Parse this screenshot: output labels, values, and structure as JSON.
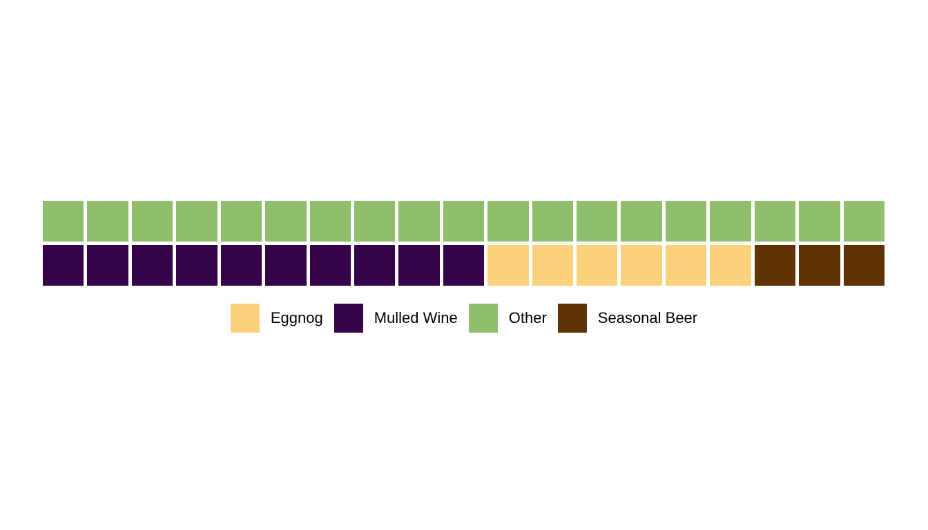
{
  "background_color": "#ffffff",
  "chart_data": {
    "type": "heatmap",
    "subtype": "waffle",
    "rows": 2,
    "columns": 19,
    "total_squares": 38,
    "series": [
      {
        "name": "Eggnog",
        "count": 6,
        "color": "#FDD17B"
      },
      {
        "name": "Mulled Wine",
        "count": 10,
        "color": "#340349"
      },
      {
        "name": "Other",
        "count": 19,
        "color": "#8FBE6C"
      },
      {
        "name": "Seasonal Beer",
        "count": 3,
        "color": "#5F3304"
      }
    ],
    "grid_rows": [
      [
        "Other",
        "Other",
        "Other",
        "Other",
        "Other",
        "Other",
        "Other",
        "Other",
        "Other",
        "Other",
        "Other",
        "Other",
        "Other",
        "Other",
        "Other",
        "Other",
        "Other",
        "Other",
        "Other"
      ],
      [
        "Mulled Wine",
        "Mulled Wine",
        "Mulled Wine",
        "Mulled Wine",
        "Mulled Wine",
        "Mulled Wine",
        "Mulled Wine",
        "Mulled Wine",
        "Mulled Wine",
        "Mulled Wine",
        "Eggnog",
        "Eggnog",
        "Eggnog",
        "Eggnog",
        "Eggnog",
        "Eggnog",
        "Seasonal Beer",
        "Seasonal Beer",
        "Seasonal Beer"
      ]
    ],
    "title": "",
    "legend": {
      "position": "bottom",
      "labels": [
        "Eggnog",
        "Mulled Wine",
        "Other",
        "Seasonal Beer"
      ]
    },
    "grid_lines": false,
    "axes_visible": false
  }
}
